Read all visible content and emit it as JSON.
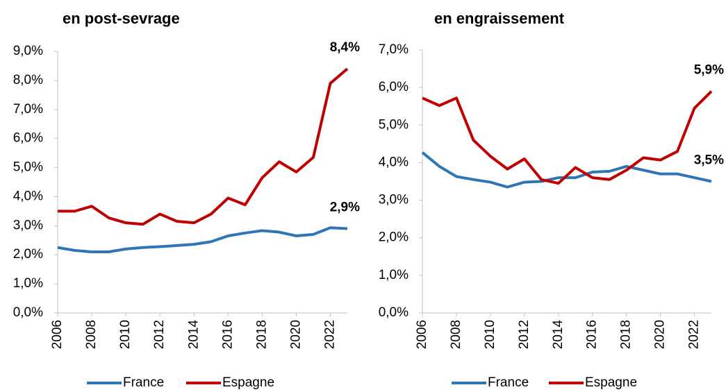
{
  "chart_data": [
    {
      "type": "line",
      "title": "en post-sevrage",
      "x": [
        2006,
        2007,
        2008,
        2009,
        2010,
        2011,
        2012,
        2013,
        2014,
        2015,
        2016,
        2017,
        2018,
        2019,
        2020,
        2021,
        2022,
        2023
      ],
      "xlim": [
        2006,
        2023
      ],
      "xticks": [
        2006,
        2008,
        2010,
        2012,
        2014,
        2016,
        2018,
        2020,
        2022
      ],
      "ylim": [
        0,
        9
      ],
      "yticks": [
        {
          "value": 0,
          "label": "0,0%"
        },
        {
          "value": 1,
          "label": "1,0%"
        },
        {
          "value": 2,
          "label": "2,0%"
        },
        {
          "value": 3,
          "label": "3,0%"
        },
        {
          "value": 4,
          "label": "4,0%"
        },
        {
          "value": 5,
          "label": "5,0%"
        },
        {
          "value": 6,
          "label": "6,0%"
        },
        {
          "value": 7,
          "label": "7,0%"
        },
        {
          "value": 8,
          "label": "8,0%"
        },
        {
          "value": 9,
          "label": "9,0%"
        }
      ],
      "grid": false,
      "legend": "bottom",
      "series": [
        {
          "name": "France",
          "color": "#2e75b6",
          "values": [
            2.25,
            2.15,
            2.1,
            2.1,
            2.2,
            2.25,
            2.28,
            2.32,
            2.36,
            2.45,
            2.65,
            2.75,
            2.83,
            2.78,
            2.65,
            2.7,
            2.93,
            2.9
          ],
          "value_labels": [
            null,
            null,
            null,
            null,
            null,
            null,
            null,
            null,
            null,
            null,
            null,
            null,
            null,
            null,
            null,
            null,
            null,
            "2,9%"
          ]
        },
        {
          "name": "Espagne",
          "color": "#c00000",
          "values": [
            3.5,
            3.5,
            3.67,
            3.27,
            3.1,
            3.05,
            3.4,
            3.15,
            3.1,
            3.4,
            3.95,
            3.72,
            4.65,
            5.2,
            4.85,
            5.35,
            7.9,
            8.4
          ],
          "value_labels": [
            null,
            null,
            null,
            null,
            null,
            null,
            null,
            null,
            null,
            null,
            null,
            null,
            null,
            null,
            null,
            null,
            null,
            "8,4%"
          ]
        }
      ]
    },
    {
      "type": "line",
      "title": "en engraissement",
      "x": [
        2006,
        2007,
        2008,
        2009,
        2010,
        2011,
        2012,
        2013,
        2014,
        2015,
        2016,
        2017,
        2018,
        2019,
        2020,
        2021,
        2022,
        2023
      ],
      "xlim": [
        2006,
        2023
      ],
      "xticks": [
        2006,
        2008,
        2010,
        2012,
        2014,
        2016,
        2018,
        2020,
        2022
      ],
      "ylim": [
        0,
        7
      ],
      "yticks": [
        {
          "value": 0,
          "label": "0,0%"
        },
        {
          "value": 1,
          "label": "1,0%"
        },
        {
          "value": 2,
          "label": "2,0%"
        },
        {
          "value": 3,
          "label": "3,0%"
        },
        {
          "value": 4,
          "label": "4,0%"
        },
        {
          "value": 5,
          "label": "5,0%"
        },
        {
          "value": 6,
          "label": "6,0%"
        },
        {
          "value": 7,
          "label": "7,0%"
        }
      ],
      "grid": false,
      "legend": "bottom",
      "series": [
        {
          "name": "France",
          "color": "#2e75b6",
          "values": [
            4.27,
            3.9,
            3.63,
            3.55,
            3.48,
            3.35,
            3.48,
            3.5,
            3.6,
            3.6,
            3.75,
            3.77,
            3.9,
            3.8,
            3.7,
            3.7,
            3.6,
            3.5
          ],
          "value_labels": [
            null,
            null,
            null,
            null,
            null,
            null,
            null,
            null,
            null,
            null,
            null,
            null,
            null,
            null,
            null,
            null,
            null,
            "3,5%"
          ]
        },
        {
          "name": "Espagne",
          "color": "#c00000",
          "values": [
            5.72,
            5.52,
            5.72,
            4.6,
            4.17,
            3.83,
            4.1,
            3.55,
            3.45,
            3.87,
            3.6,
            3.55,
            3.8,
            4.13,
            4.07,
            4.3,
            5.45,
            5.9
          ],
          "value_labels": [
            null,
            null,
            null,
            null,
            null,
            null,
            null,
            null,
            null,
            null,
            null,
            null,
            null,
            null,
            null,
            null,
            null,
            "5,9%"
          ]
        }
      ]
    }
  ]
}
